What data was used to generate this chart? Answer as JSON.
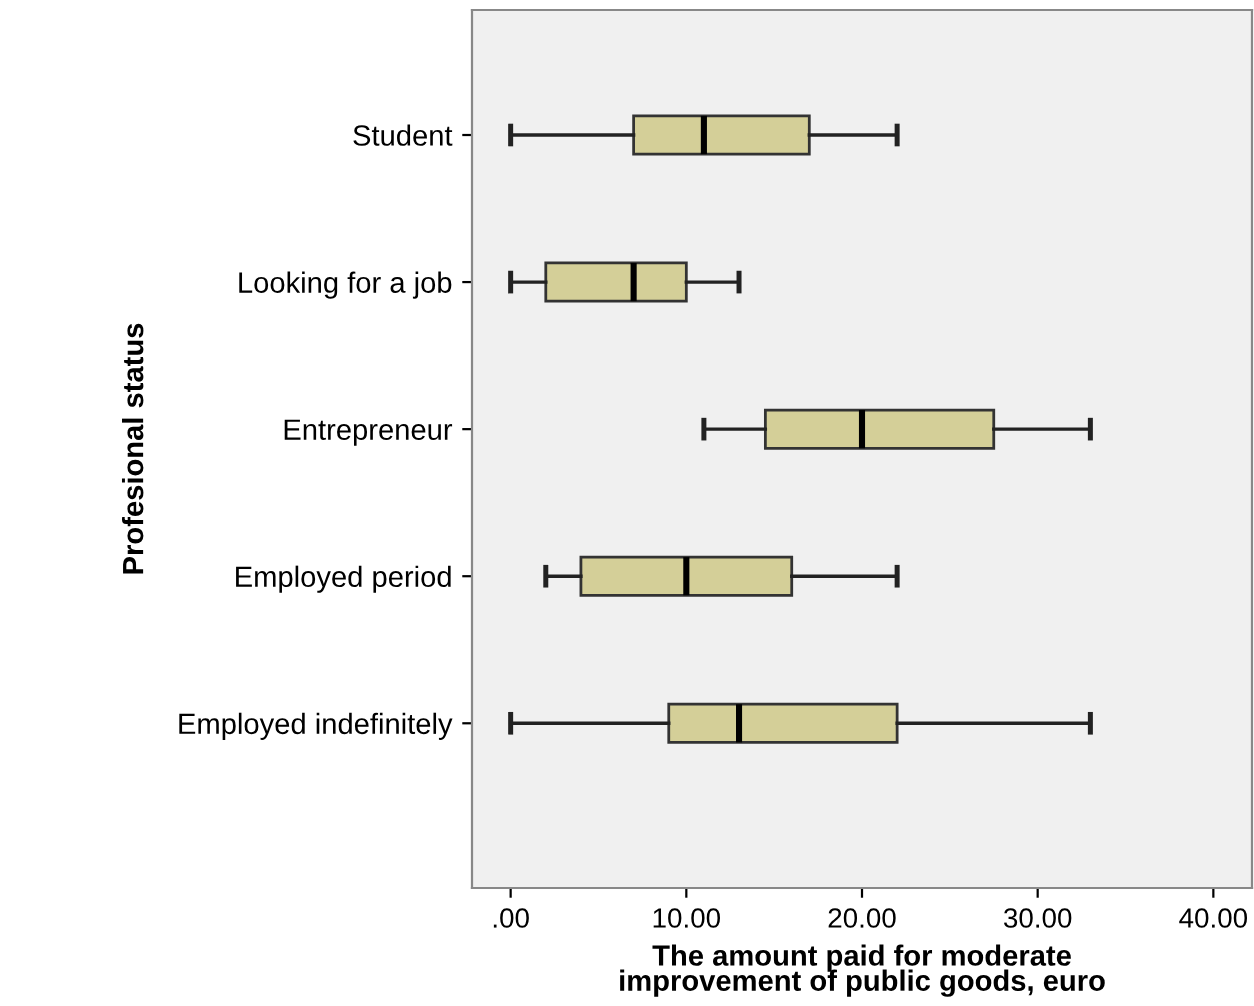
{
  "chart_data": {
    "type": "box",
    "orientation": "horizontal",
    "xlabel": "The amount paid for moderate\nimprovement of public goods, euro",
    "ylabel": "Profesional status",
    "categories": [
      "Student",
      "Looking for a job",
      "Entrepreneur",
      "Employed period",
      "Employed indefinitely"
    ],
    "boxes": [
      {
        "low": 0,
        "q1": 7,
        "median": 11,
        "q3": 17,
        "high": 22
      },
      {
        "low": 0,
        "q1": 2,
        "median": 7,
        "q3": 10,
        "high": 13
      },
      {
        "low": 11,
        "q1": 14.5,
        "median": 20,
        "q3": 27.5,
        "high": 33
      },
      {
        "low": 2,
        "q1": 4,
        "median": 10,
        "q3": 16,
        "high": 22
      },
      {
        "low": 0,
        "q1": 9,
        "median": 13,
        "q3": 22,
        "high": 33
      }
    ],
    "color": "#d4cf98",
    "xlim": [
      -2.2,
      42.2
    ],
    "xticks": [
      {
        "value": 0,
        "label": ".00"
      },
      {
        "value": 10,
        "label": "10.00"
      },
      {
        "value": 20,
        "label": "20.00"
      },
      {
        "value": 30,
        "label": "30.00"
      },
      {
        "value": 40,
        "label": "40.00"
      }
    ],
    "grid": false,
    "legend": false
  }
}
